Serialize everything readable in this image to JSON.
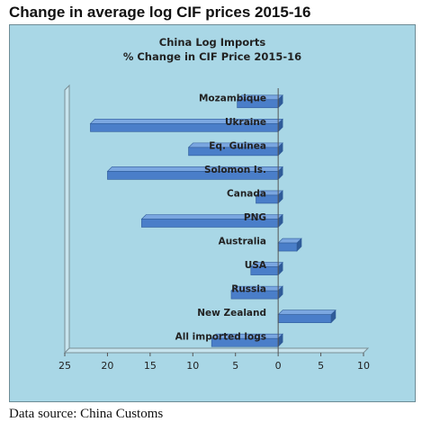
{
  "page_title": "Change in average log CIF prices 2015-16",
  "source_note": "Data source: China Customs",
  "chart_data": {
    "type": "bar",
    "orientation": "horizontal",
    "title": "China Log Imports",
    "subtitle": "% Change in CIF Price 2015-16",
    "categories": [
      "Mozambique",
      "Ukraine",
      "Eq. Guinea",
      "Solomon Is.",
      "Canada",
      "PNG",
      "Australia",
      "USA",
      "Russia",
      "New Zealand",
      "All imported logs"
    ],
    "values": [
      -4.8,
      -22,
      -10.5,
      -20,
      -2.6,
      -16,
      2.2,
      -3.2,
      -5.5,
      6.2,
      -7.8
    ],
    "xlim": [
      -25,
      10
    ],
    "x_tick_labels": [
      "25",
      "20",
      "15",
      "10",
      "5",
      "0",
      "5",
      "10"
    ],
    "x_reversed_negative_labels": true,
    "bar_color": "#4a7ec9",
    "background_color": "#a9d7e6",
    "grid": false,
    "style": "3d"
  }
}
